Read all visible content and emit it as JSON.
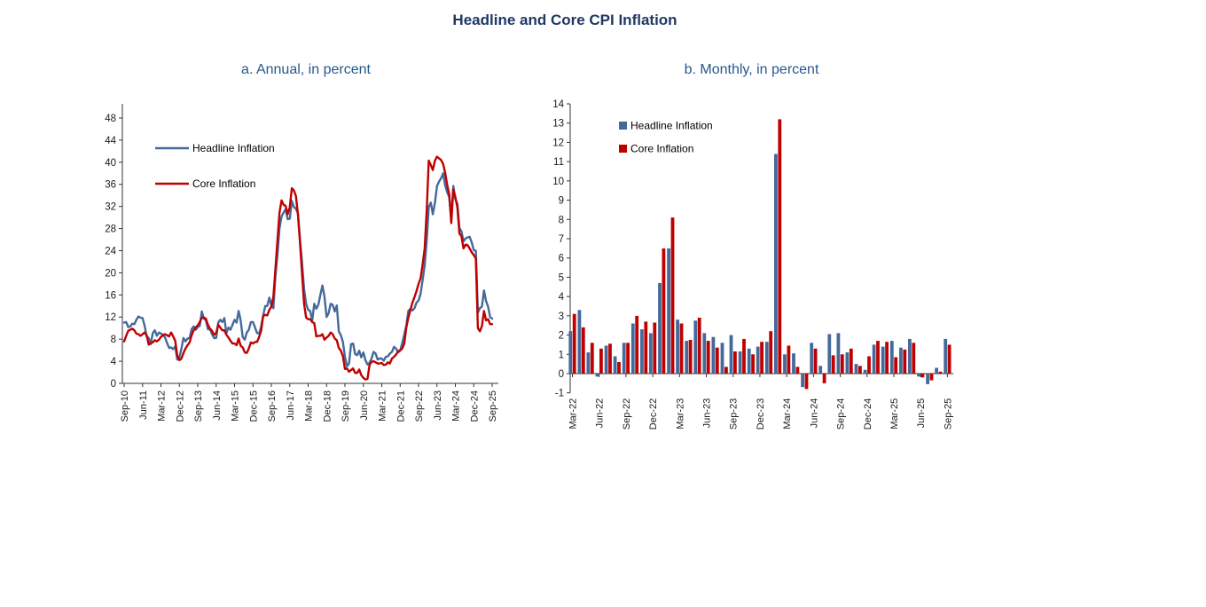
{
  "page": {
    "title": "Headline and Core CPI Inflation"
  },
  "colors": {
    "headline_blue": "#44699B",
    "core_red": "#C00000",
    "title_navy": "#1F3864",
    "subtitle_blue": "#26588C",
    "axis_line": "#333333",
    "tick_text": "#1a1a1a"
  },
  "chart_data": [
    {
      "type": "line",
      "title": "a. Annual, in percent",
      "ylim": [
        0,
        48
      ],
      "y_ticks": [
        0,
        4,
        8,
        12,
        16,
        20,
        24,
        28,
        32,
        36,
        40,
        44,
        48
      ],
      "x_tick_every_months": 9,
      "x_tick_labels": [
        "Sep-10",
        "Jun-11",
        "Mar-12",
        "Dec-12",
        "Sep-13",
        "Jun-14",
        "Mar-15",
        "Dec-15",
        "Sep-16",
        "Jun-17",
        "Mar-18",
        "Dec-18",
        "Sep-19",
        "Jun-20",
        "Mar-21",
        "Dec-21",
        "Sep-22",
        "Jun-23",
        "Mar-24",
        "Dec-24",
        "Sep-25"
      ],
      "x_range_note": "monthly points from Sep-2010 to Sep-2025",
      "legend_position": "top-left-inside",
      "grid": false,
      "series": [
        {
          "name": "Headline Inflation",
          "color_key": "headline_blue",
          "values": [
            11,
            11.1,
            10.2,
            10.3,
            10.8,
            10.7,
            11.5,
            12.1,
            11.9,
            11.8,
            10.4,
            8.5,
            8.2,
            7.1,
            9.1,
            9.6,
            8.6,
            9.2,
            9,
            8.8,
            8.3,
            7.3,
            6.4,
            6.5,
            6.2,
            6.7,
            4.3,
            4.7,
            6.3,
            8.2,
            7.6,
            8.1,
            8.2,
            9.8,
            10.3,
            9.7,
            10.2,
            10.4,
            13,
            11.7,
            11.4,
            9.8,
            9.8,
            8.9,
            8.2,
            8.2,
            11,
            11.5,
            11.1,
            11.8,
            9.1,
            10.1,
            9.7,
            10.6,
            11.5,
            11,
            13.1,
            11.4,
            8.4,
            7.9,
            9.2,
            9.7,
            11.1,
            11.1,
            10.1,
            9.1,
            9,
            10.3,
            12.3,
            14,
            14,
            15.5,
            14.1,
            13.6,
            19.4,
            23.3,
            28.1,
            30.2,
            30.9,
            31.5,
            29.7,
            29.8,
            33,
            31.9,
            31.6,
            30.8,
            26,
            21.9,
            17.1,
            14.4,
            13.3,
            13.1,
            11.4,
            14.4,
            13.5,
            14.2,
            16,
            17.7,
            15.7,
            12,
            12.7,
            14.4,
            14.2,
            13,
            14.1,
            9.4,
            8.7,
            7.5,
            4.8,
            3.1,
            3.6,
            7.1,
            7.2,
            5.3,
            5.1,
            5.9,
            4.7,
            5.6,
            4.2,
            3.4,
            3.7,
            4.5,
            5.7,
            5.4,
            4.3,
            4.5,
            4.5,
            4.1,
            4.8,
            4.9,
            5.4,
            5.7,
            6.6,
            6.3,
            5.6,
            5.9,
            7.3,
            8.8,
            10.5,
            13.1,
            13.5,
            13.2,
            13.6,
            14.6,
            15,
            16.2,
            18.7,
            21.3,
            25.8,
            31.9,
            32.7,
            30.6,
            32.7,
            35.7,
            36.5,
            37.1,
            38,
            35.8,
            34.6,
            33.7,
            29.8,
            35.7,
            33.3,
            32.5,
            28.1,
            27.5,
            25.7,
            26.2,
            26.4,
            26.5,
            25.5,
            24.1,
            24,
            12.8,
            13.6,
            13.9,
            16.8,
            14.9,
            13.9,
            12,
            11.7
          ]
        },
        {
          "name": "Core Inflation",
          "color_key": "core_red",
          "values": [
            7.6,
            8.6,
            9.5,
            9.7,
            9.9,
            9.6,
            9,
            8.9,
            8.6,
            8.9,
            9.2,
            8.7,
            7,
            7.3,
            7.4,
            7.8,
            7.6,
            7.9,
            8.4,
            8.7,
            8.9,
            8.7,
            8.5,
            9.2,
            8.5,
            7.7,
            5,
            4.2,
            4.5,
            5.5,
            6.3,
            6.9,
            7.4,
            8.7,
            9.6,
            10.1,
            10.5,
            11.1,
            11.9,
            11.9,
            11.7,
            10.6,
            9.9,
            9.5,
            8.8,
            9.1,
            10.6,
            10.1,
            9.6,
            9.6,
            8.8,
            8.3,
            7.7,
            7.2,
            7.2,
            6.9,
            8.1,
            6.8,
            6.5,
            5.6,
            5.5,
            6.3,
            7.4,
            7.2,
            7.5,
            7.5,
            8.4,
            9.5,
            12.2,
            12.4,
            12.3,
            13.3,
            13.9,
            15.7,
            20.7,
            25.9,
            30.9,
            33.1,
            32.3,
            32.1,
            30.6,
            31.9,
            35.3,
            34.9,
            33.9,
            30.5,
            25.5,
            19.9,
            14.4,
            11.9,
            11.6,
            11.6,
            11.1,
            10.9,
            8.5,
            8.6,
            8.6,
            8.9,
            7.9,
            8.3,
            8.6,
            9.2,
            8.9,
            8.1,
            7.8,
            6.4,
            5.9,
            4.9,
            2.6,
            2.7,
            2.1,
            2.4,
            2.7,
            1.9,
            1.9,
            2.5,
            1.5,
            1,
            0.7,
            0.8,
            3.3,
            3.9,
            4,
            3.8,
            3.6,
            3.6,
            3.7,
            3.3,
            3.4,
            3.8,
            3.6,
            4.5,
            4.8,
            5.2,
            5.8,
            6,
            6.3,
            7.2,
            10.1,
            11.9,
            13.3,
            14.6,
            15.6,
            16.7,
            18,
            19,
            21.5,
            24.4,
            31.2,
            40.3,
            39.5,
            38.6,
            40.3,
            41,
            40.7,
            40.4,
            39.7,
            38.1,
            35.9,
            34.2,
            29,
            35.1,
            33.7,
            31.8,
            27.1,
            26.6,
            24.4,
            25.1,
            25,
            24.4,
            23.7,
            23.2,
            22.6,
            10,
            9.4,
            10.4,
            13.1,
            11.4,
            11.6,
            10.7,
            10.7
          ]
        }
      ]
    },
    {
      "type": "bar",
      "title": "b. Monthly, in percent",
      "ylim": [
        -1,
        14
      ],
      "y_ticks": [
        -1,
        0,
        1,
        2,
        3,
        4,
        5,
        6,
        7,
        8,
        9,
        10,
        11,
        12,
        13,
        14
      ],
      "x_tick_every_months": 3,
      "x_tick_labels": [
        "Mar-22",
        "Jun-22",
        "Sep-22",
        "Dec-22",
        "Mar-23",
        "Jun-23",
        "Sep-23",
        "Dec-23",
        "Mar-24",
        "Jun-24",
        "Sep-24",
        "Dec-24",
        "Mar-25",
        "Jun-25",
        "Sep-25"
      ],
      "categories": [
        "Mar-22",
        "Apr-22",
        "May-22",
        "Jun-22",
        "Jul-22",
        "Aug-22",
        "Sep-22",
        "Oct-22",
        "Nov-22",
        "Dec-22",
        "Jan-23",
        "Feb-23",
        "Mar-23",
        "Apr-23",
        "May-23",
        "Jun-23",
        "Jul-23",
        "Aug-23",
        "Sep-23",
        "Oct-23",
        "Nov-23",
        "Dec-23",
        "Jan-24",
        "Feb-24",
        "Mar-24",
        "Apr-24",
        "May-24",
        "Jun-24",
        "Jul-24",
        "Aug-24",
        "Sep-24",
        "Oct-24",
        "Nov-24",
        "Dec-24",
        "Jan-25",
        "Feb-25",
        "Mar-25",
        "Apr-25",
        "May-25",
        "Jun-25",
        "Jul-25",
        "Aug-25",
        "Sep-25"
      ],
      "legend_position": "top-left-inside",
      "grid": false,
      "series": [
        {
          "name": "Headline Inflation",
          "color_key": "headline_blue",
          "values": [
            2.2,
            3.3,
            1.1,
            -0.15,
            1.45,
            0.9,
            1.6,
            2.6,
            2.3,
            2.1,
            4.7,
            6.5,
            2.8,
            1.7,
            2.75,
            2.1,
            1.9,
            1.6,
            2,
            1.15,
            1.3,
            1.4,
            1.65,
            11.4,
            1,
            1.05,
            -0.7,
            1.6,
            0.4,
            2.05,
            2.1,
            1.1,
            0.5,
            0.2,
            1.5,
            1.4,
            1.7,
            1.35,
            1.8,
            -0.15,
            -0.55,
            0.3,
            1.8
          ]
        },
        {
          "name": "Core Inflation",
          "color_key": "core_red",
          "values": [
            3.1,
            2.4,
            1.6,
            1.3,
            1.55,
            0.6,
            1.6,
            3,
            2.7,
            2.65,
            6.5,
            8.1,
            2.6,
            1.75,
            2.9,
            1.7,
            1.35,
            0.35,
            1.15,
            1.8,
            1,
            1.65,
            2.2,
            13.2,
            1.45,
            0.35,
            -0.8,
            1.3,
            -0.5,
            0.95,
            1,
            1.3,
            0.4,
            0.9,
            1.7,
            1.65,
            0.85,
            1.25,
            1.6,
            -0.2,
            -0.35,
            0.1,
            1.5
          ]
        }
      ]
    }
  ]
}
